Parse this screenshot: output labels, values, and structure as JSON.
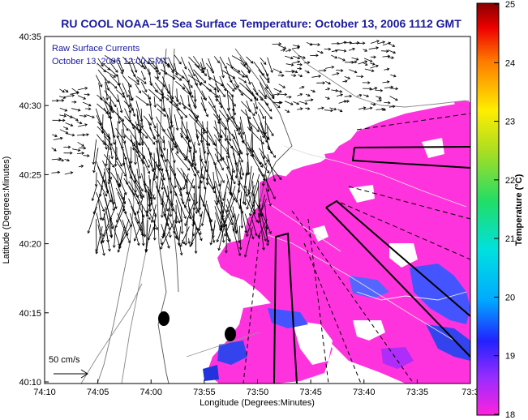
{
  "title": "RU COOL  NOAA–15  Sea Surface Temperature:  October 13, 2006 1112 GMT",
  "legend": {
    "line1": "Raw Surface Currents",
    "line2": "October 13, 2006 12:00 GMT"
  },
  "scale_label": "50 cm/s",
  "x_axis": {
    "label": "Longitude (Degrees:Minutes)",
    "ticks": [
      "74:10",
      "74:05",
      "74:00",
      "73:55",
      "73:50",
      "73:45",
      "73:40",
      "73:35",
      "73:3"
    ]
  },
  "y_axis": {
    "label": "Latitude (Degrees:Minutes)",
    "ticks": [
      "40:35",
      "40:30",
      "40:25",
      "40:20",
      "40:15",
      "40:10"
    ]
  },
  "colorbar": {
    "label": "Temperature (°C)",
    "ticks": [
      "25",
      "24",
      "23",
      "22",
      "21",
      "20",
      "19",
      "18"
    ],
    "min": 18,
    "max": 25
  },
  "colors": {
    "title": "#1a1a9e",
    "sst_warm": "#ff33dd",
    "sst_cool": "#3355ff"
  }
}
